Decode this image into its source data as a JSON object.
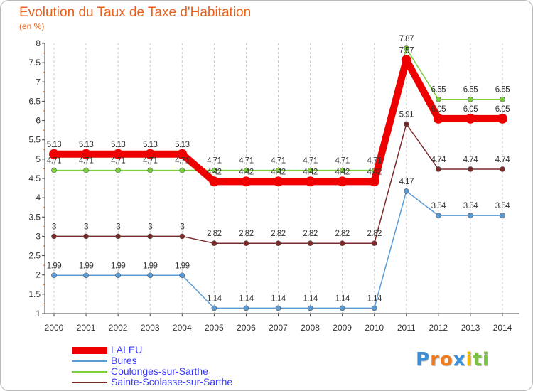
{
  "header": {
    "title": "Evolution du Taux de Taxe d'Habitation",
    "subtitle": "(en %)"
  },
  "chart_data": {
    "type": "line",
    "title": "Evolution du Taux de Taxe d'Habitation",
    "subtitle": "(en %)",
    "xlabel": "",
    "ylabel": "(en %)",
    "x": [
      "2000",
      "2001",
      "2002",
      "2003",
      "2004",
      "2005",
      "2006",
      "2007",
      "2008",
      "2009",
      "2010",
      "2011",
      "2012",
      "2013",
      "2014"
    ],
    "ylim": [
      1,
      8
    ],
    "yticks": [
      "1",
      "1.5",
      "2",
      "2.5",
      "3",
      "3.5",
      "4",
      "4.5",
      "5",
      "5.5",
      "6",
      "6.5",
      "7",
      "7.5",
      "8"
    ],
    "grid": "vertical dashed",
    "legend_position": "bottom-left",
    "series": [
      {
        "name": "LALEU",
        "color": "#ee0000",
        "values": [
          5.13,
          5.13,
          5.13,
          5.13,
          5.13,
          4.42,
          4.42,
          4.42,
          4.42,
          4.42,
          4.42,
          7.57,
          6.05,
          6.05,
          6.05
        ],
        "labels": [
          "5.13",
          "5.13",
          "5.13",
          "5.13",
          "5.13",
          "4.42",
          "4.42",
          "4.42",
          "4.42",
          "4.42",
          "4.42",
          "7.57",
          "6.05",
          "6.05",
          "6.05"
        ]
      },
      {
        "name": "Bures",
        "color": "#5b9bd5",
        "values": [
          1.99,
          1.99,
          1.99,
          1.99,
          1.99,
          1.14,
          1.14,
          1.14,
          1.14,
          1.14,
          1.14,
          4.17,
          3.54,
          3.54,
          3.54
        ],
        "labels": [
          "1.99",
          "1.99",
          "1.99",
          "1.99",
          "1.99",
          "1.14",
          "1.14",
          "1.14",
          "1.14",
          "1.14",
          "1.14",
          "4.17",
          "3.54",
          "3.54",
          "3.54"
        ]
      },
      {
        "name": "Coulonges-sur-Sarthe",
        "color": "#7ccf3c",
        "values": [
          4.71,
          4.71,
          4.71,
          4.71,
          4.71,
          4.71,
          4.71,
          4.71,
          4.71,
          4.71,
          4.71,
          7.87,
          6.55,
          6.55,
          6.55
        ],
        "labels": [
          "4.71",
          "4.71",
          "4.71",
          "4.71",
          "4.71",
          "4.71",
          "4.71",
          "4.71",
          "4.71",
          "4.71",
          "4.71",
          "7.87",
          "6.55",
          "6.55",
          "6.55"
        ]
      },
      {
        "name": "Sainte-Scolasse-sur-Sarthe",
        "color": "#7b2a2a",
        "values": [
          3,
          3,
          3,
          3,
          3,
          2.82,
          2.82,
          2.82,
          2.82,
          2.82,
          2.82,
          5.91,
          4.74,
          4.74,
          4.74
        ],
        "labels": [
          "3",
          "3",
          "3",
          "3",
          "3",
          "2.82",
          "2.82",
          "2.82",
          "2.82",
          "2.82",
          "2.82",
          "5.91",
          "4.74",
          "4.74",
          "4.74"
        ]
      }
    ]
  },
  "logo": {
    "letters": [
      "P",
      "r",
      "o",
      "x",
      "i",
      "t",
      "i"
    ],
    "colors": [
      "#3b8fd9",
      "#f07b1d",
      "#f07b1d",
      "#3b8fd9",
      "#f2b705",
      "#7cc242",
      "#7cc242"
    ]
  }
}
